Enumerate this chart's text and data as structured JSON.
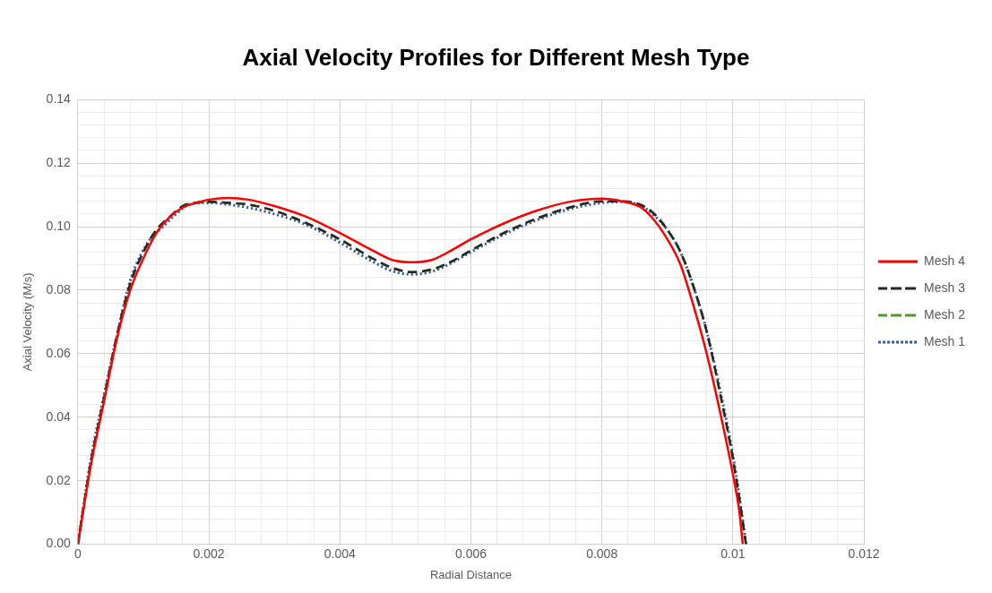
{
  "chart_data": {
    "type": "line",
    "title": "Axial Velocity Profiles for Different Mesh Type",
    "xlabel": "Radial Distance",
    "ylabel": "Axial Velocity (M/s)",
    "xlim": [
      0,
      0.012
    ],
    "ylim": [
      0,
      0.14
    ],
    "xticks": [
      0,
      {
        "value": 0.0004,
        "label": null
      },
      {
        "value": 0.0008,
        "label": null
      },
      {
        "value": 0.0012,
        "label": null
      },
      {
        "value": 0.0016,
        "label": null
      },
      0.002,
      {
        "value": 0.0024,
        "label": null
      },
      {
        "value": 0.0028,
        "label": null
      },
      {
        "value": 0.0032,
        "label": null
      },
      {
        "value": 0.0036,
        "label": null
      },
      0.004,
      {
        "value": 0.0044,
        "label": null
      },
      {
        "value": 0.0048,
        "label": null
      },
      {
        "value": 0.0052,
        "label": null
      },
      {
        "value": 0.0056,
        "label": null
      },
      0.006,
      {
        "value": 0.0064,
        "label": null
      },
      {
        "value": 0.0068,
        "label": null
      },
      {
        "value": 0.0072,
        "label": null
      },
      {
        "value": 0.0076,
        "label": null
      },
      0.008,
      {
        "value": 0.0084,
        "label": null
      },
      {
        "value": 0.0088,
        "label": null
      },
      {
        "value": 0.0092,
        "label": null
      },
      {
        "value": 0.0096,
        "label": null
      },
      0.01,
      {
        "value": 0.0104,
        "label": null
      },
      {
        "value": 0.0108,
        "label": null
      },
      {
        "value": 0.0112,
        "label": null
      },
      {
        "value": 0.0116,
        "label": null
      },
      0.012
    ],
    "yticks": [
      {
        "value": 0,
        "label": "0.00"
      },
      {
        "value": 0.004,
        "label": null
      },
      {
        "value": 0.008,
        "label": null
      },
      {
        "value": 0.012,
        "label": null
      },
      {
        "value": 0.016,
        "label": null
      },
      {
        "value": 0.02,
        "label": "0.02"
      },
      {
        "value": 0.024,
        "label": null
      },
      {
        "value": 0.028,
        "label": null
      },
      {
        "value": 0.032,
        "label": null
      },
      {
        "value": 0.036,
        "label": null
      },
      {
        "value": 0.04,
        "label": "0.04"
      },
      {
        "value": 0.044,
        "label": null
      },
      {
        "value": 0.048,
        "label": null
      },
      {
        "value": 0.052,
        "label": null
      },
      {
        "value": 0.056,
        "label": null
      },
      {
        "value": 0.06,
        "label": "0.06"
      },
      {
        "value": 0.064,
        "label": null
      },
      {
        "value": 0.068,
        "label": null
      },
      {
        "value": 0.072,
        "label": null
      },
      {
        "value": 0.076,
        "label": null
      },
      {
        "value": 0.08,
        "label": "0.08"
      },
      {
        "value": 0.084,
        "label": null
      },
      {
        "value": 0.088,
        "label": null
      },
      {
        "value": 0.092,
        "label": null
      },
      {
        "value": 0.096,
        "label": null
      },
      {
        "value": 0.1,
        "label": "0.10"
      },
      {
        "value": 0.104,
        "label": null
      },
      {
        "value": 0.108,
        "label": null
      },
      {
        "value": 0.112,
        "label": null
      },
      {
        "value": 0.116,
        "label": null
      },
      {
        "value": 0.12,
        "label": "0.12"
      },
      {
        "value": 0.124,
        "label": null
      },
      {
        "value": 0.128,
        "label": null
      },
      {
        "value": 0.132,
        "label": null
      },
      {
        "value": 0.136,
        "label": null
      },
      {
        "value": 0.14,
        "label": "0.14"
      }
    ],
    "grid": true,
    "legend": "right",
    "marker": "none",
    "series": [
      {
        "name": "Mesh 4",
        "color": "#ff0000",
        "line_style": "solid",
        "x": [
          0,
          0.0002,
          0.0004,
          0.0006,
          0.0008,
          0.001,
          0.0012,
          0.0014,
          0.0016,
          0.0018,
          0.002,
          0.0023,
          0.0026,
          0.003,
          0.0035,
          0.004,
          0.0045,
          0.0048,
          0.0051,
          0.0054,
          0.0057,
          0.006,
          0.0065,
          0.007,
          0.0075,
          0.008,
          0.0083,
          0.0086,
          0.0088,
          0.009,
          0.0092,
          0.0094,
          0.0096,
          0.0098,
          0.01,
          0.0101,
          0.01015
        ],
        "values": [
          0,
          0.025,
          0.045,
          0.065,
          0.08,
          0.09,
          0.098,
          0.103,
          0.106,
          0.1075,
          0.1085,
          0.109,
          0.1085,
          0.1065,
          0.103,
          0.098,
          0.0925,
          0.0895,
          0.0888,
          0.0895,
          0.0925,
          0.096,
          0.101,
          0.105,
          0.1078,
          0.1088,
          0.108,
          0.106,
          0.102,
          0.096,
          0.088,
          0.075,
          0.06,
          0.042,
          0.022,
          0.01,
          0
        ]
      },
      {
        "name": "Mesh 3",
        "color": "#262626",
        "line_style": "dashed",
        "x": [
          0,
          0.0002,
          0.0004,
          0.0006,
          0.0008,
          0.001,
          0.0012,
          0.0014,
          0.0016,
          0.0018,
          0.002,
          0.0023,
          0.0026,
          0.003,
          0.0035,
          0.004,
          0.0045,
          0.0048,
          0.0051,
          0.0054,
          0.0057,
          0.006,
          0.0065,
          0.007,
          0.0075,
          0.008,
          0.0083,
          0.0086,
          0.0088,
          0.009,
          0.0092,
          0.0094,
          0.0096,
          0.0098,
          0.01,
          0.0101,
          0.0102
        ],
        "values": [
          0,
          0.026,
          0.046,
          0.066,
          0.082,
          0.092,
          0.099,
          0.103,
          0.1065,
          0.1075,
          0.1078,
          0.1075,
          0.107,
          0.105,
          0.101,
          0.096,
          0.09,
          0.087,
          0.0857,
          0.0865,
          0.089,
          0.0925,
          0.098,
          0.1025,
          0.106,
          0.108,
          0.108,
          0.1068,
          0.104,
          0.099,
          0.092,
          0.081,
          0.067,
          0.048,
          0.027,
          0.014,
          0
        ]
      },
      {
        "name": "Mesh 2",
        "color": "#4e9a29",
        "line_style": "dashed",
        "x": [
          0,
          0.0002,
          0.0004,
          0.0006,
          0.0008,
          0.001,
          0.0012,
          0.0014,
          0.0016,
          0.0018,
          0.002,
          0.0023,
          0.0026,
          0.003,
          0.0035,
          0.004,
          0.0045,
          0.0048,
          0.0051,
          0.0054,
          0.0057,
          0.006,
          0.0065,
          0.007,
          0.0075,
          0.008,
          0.0083,
          0.0086,
          0.0088,
          0.009,
          0.0092,
          0.0094,
          0.0096,
          0.0098,
          0.01,
          0.0101,
          0.0102
        ],
        "values": [
          0,
          0.026,
          0.046,
          0.066,
          0.082,
          0.092,
          0.099,
          0.103,
          0.1065,
          0.1075,
          0.1078,
          0.1075,
          0.107,
          0.105,
          0.101,
          0.096,
          0.09,
          0.087,
          0.0857,
          0.0865,
          0.089,
          0.0925,
          0.098,
          0.1025,
          0.106,
          0.108,
          0.108,
          0.1068,
          0.104,
          0.099,
          0.092,
          0.081,
          0.067,
          0.048,
          0.027,
          0.014,
          0
        ]
      },
      {
        "name": "Mesh 1",
        "color": "#2f55a4",
        "line_style": "dotted",
        "x": [
          0,
          0.0002,
          0.0004,
          0.0006,
          0.0008,
          0.0011,
          0.0013,
          0.0015,
          0.0017,
          0.002,
          0.0023,
          0.0026,
          0.003,
          0.0035,
          0.004,
          0.0045,
          0.0048,
          0.0051,
          0.0054,
          0.0057,
          0.006,
          0.0065,
          0.007,
          0.0075,
          0.008,
          0.0083,
          0.0086,
          0.0088,
          0.009,
          0.0092,
          0.0094,
          0.0096,
          0.0098,
          0.01,
          0.0101,
          0.0102
        ],
        "values": [
          0,
          0.027,
          0.047,
          0.066,
          0.083,
          0.096,
          0.1,
          0.104,
          0.107,
          0.1075,
          0.107,
          0.106,
          0.104,
          0.1005,
          0.095,
          0.089,
          0.086,
          0.085,
          0.0858,
          0.0885,
          0.092,
          0.0975,
          0.102,
          0.1055,
          0.1075,
          0.1078,
          0.1065,
          0.1035,
          0.099,
          0.092,
          0.081,
          0.067,
          0.049,
          0.028,
          0.015,
          0
        ]
      }
    ]
  }
}
